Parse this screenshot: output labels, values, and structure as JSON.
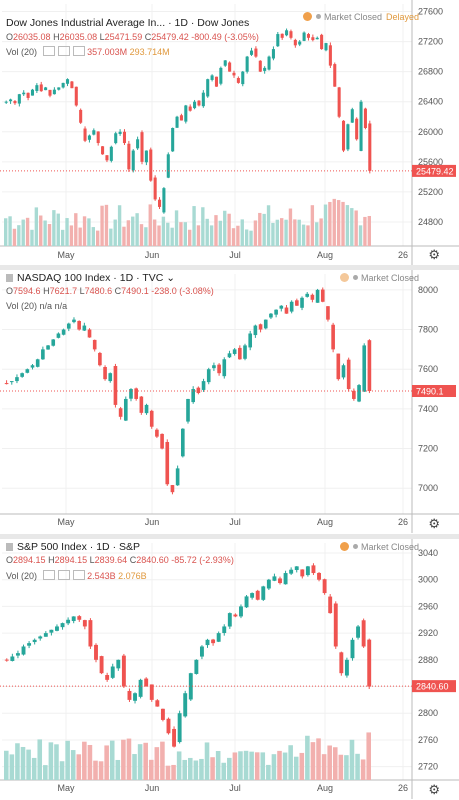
{
  "panes": [
    {
      "id": "dow",
      "title": "Dow Jones Industrial Average In...",
      "interval": "1D",
      "source": "Dow Jones",
      "ohlc": {
        "o": "26035.08",
        "h": "26035.08",
        "l": "25471.59",
        "c": "25479.42",
        "chg": "-800.49 (-3.05%)"
      },
      "vol_label": "Vol (20)",
      "vol_a": "357.003M",
      "vol_b": "293.714M",
      "status": "Market Closed",
      "delayed": "Delayed",
      "last_price": "25479.42"
    },
    {
      "id": "ndx",
      "title": "NASDAQ 100 Index",
      "interval": "1D",
      "source": "TVC",
      "ohlc": {
        "o": "7594.6",
        "h": "7621.7",
        "l": "7480.6",
        "c": "7490.1",
        "chg": "-238.0 (-3.08%)"
      },
      "vol_label": "Vol (20)",
      "vol_a": "n/a",
      "vol_b": "n/a",
      "status": "Market Closed",
      "delayed": "",
      "last_price": "7490.1"
    },
    {
      "id": "spx",
      "title": "S&P 500 Index",
      "interval": "1D",
      "source": "S&P",
      "ohlc": {
        "o": "2894.15",
        "h": "2894.15",
        "l": "2839.64",
        "c": "2840.60",
        "chg": "-85.72 (-2.93%)"
      },
      "vol_label": "Vol (20)",
      "vol_a": "2.543B",
      "vol_b": "2.076B",
      "status": "Market Closed",
      "delayed": "",
      "last_price": "2840.60"
    }
  ],
  "chart_data": [
    {
      "type": "candlestick",
      "title": "Dow Jones Industrial Average Index, 1D",
      "x_labels": [
        "May",
        "Jun",
        "Jul",
        "Aug",
        "26"
      ],
      "y_ticks": [
        24800,
        25200,
        25600,
        26000,
        26400,
        26800,
        27200,
        27600
      ],
      "ylim": [
        24480,
        27700
      ],
      "last_close": 25479.42,
      "closes": [
        26400,
        26430,
        26380,
        26500,
        26520,
        26450,
        26560,
        26620,
        26540,
        26590,
        26480,
        26560,
        26590,
        26650,
        26700,
        26580,
        26350,
        26120,
        25880,
        25950,
        26020,
        25850,
        25700,
        25620,
        25800,
        25980,
        26000,
        25850,
        25500,
        25750,
        25900,
        25600,
        25750,
        25350,
        25100,
        25000,
        25250,
        25700,
        26050,
        26200,
        26150,
        26350,
        26280,
        26400,
        26350,
        26520,
        26700,
        26750,
        26600,
        26850,
        26950,
        26800,
        26750,
        26650,
        26800,
        27000,
        27080,
        27000,
        26800,
        26850,
        27000,
        27100,
        27300,
        27250,
        27350,
        27250,
        27150,
        27200,
        27320,
        27250,
        27220,
        27250,
        27100,
        27180,
        26880,
        26600,
        26200,
        25750,
        26100,
        26300,
        25900,
        26400,
        26050,
        25480
      ]
    },
    {
      "type": "candlestick",
      "title": "NASDAQ 100 Index, 1D",
      "x_labels": [
        "May",
        "Jun",
        "Jul",
        "Aug",
        "26"
      ],
      "y_ticks": [
        7000,
        7200,
        7400,
        7600,
        7800,
        8000
      ],
      "ylim": [
        6870,
        8080
      ],
      "last_close": 7490.1,
      "closes": [
        7530,
        7540,
        7560,
        7580,
        7600,
        7620,
        7650,
        7700,
        7720,
        7750,
        7780,
        7800,
        7830,
        7850,
        7800,
        7820,
        7760,
        7700,
        7620,
        7550,
        7580,
        7420,
        7360,
        7450,
        7500,
        7450,
        7380,
        7420,
        7310,
        7260,
        7200,
        7020,
        6980,
        7100,
        7300,
        7450,
        7500,
        7480,
        7540,
        7600,
        7620,
        7580,
        7650,
        7680,
        7700,
        7650,
        7720,
        7780,
        7820,
        7800,
        7850,
        7880,
        7900,
        7920,
        7880,
        7940,
        7920,
        7960,
        7980,
        7950,
        8000,
        7940,
        7850,
        7700,
        7550,
        7620,
        7500,
        7450,
        7520,
        7720,
        7490
      ]
    },
    {
      "type": "candlestick",
      "title": "S&P 500 Index, 1D",
      "x_labels": [
        "May",
        "Jun",
        "Jul",
        "Aug",
        "26"
      ],
      "y_ticks": [
        2720,
        2760,
        2800,
        2840,
        2880,
        2920,
        2960,
        3000,
        3040
      ],
      "ylim": [
        2700,
        3055
      ],
      "last_close": 2840.6,
      "closes": [
        2880,
        2885,
        2890,
        2900,
        2905,
        2910,
        2915,
        2920,
        2925,
        2930,
        2935,
        2940,
        2945,
        2940,
        2930,
        2900,
        2880,
        2860,
        2850,
        2870,
        2880,
        2840,
        2820,
        2830,
        2850,
        2840,
        2820,
        2810,
        2790,
        2770,
        2750,
        2800,
        2830,
        2860,
        2880,
        2900,
        2910,
        2905,
        2920,
        2930,
        2950,
        2945,
        2960,
        2975,
        2980,
        2970,
        2990,
        3000,
        3005,
        2995,
        3010,
        3015,
        3020,
        3005,
        3020,
        3010,
        3000,
        2980,
        2950,
        2900,
        2860,
        2880,
        2910,
        2930,
        2900,
        2840
      ]
    }
  ]
}
